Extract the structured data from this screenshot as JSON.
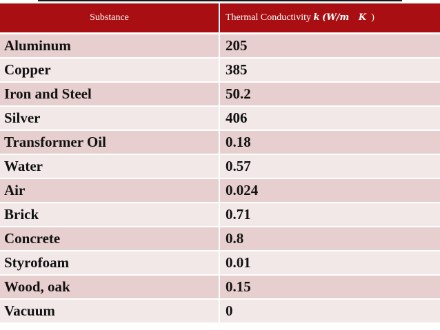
{
  "table": {
    "headers": {
      "substance": "Substance",
      "conductivity_prefix": "Thermal Conductivity ",
      "conductivity_k": "k",
      "conductivity_units": "(W/m   K",
      "conductivity_close": ")"
    },
    "rows": [
      {
        "substance": "Aluminum",
        "value": "205"
      },
      {
        "substance": "Copper",
        "value": "385"
      },
      {
        "substance": "Iron and Steel",
        "value": "50.2"
      },
      {
        "substance": "Silver",
        "value": "406"
      },
      {
        "substance": "Transformer Oil",
        "value": "0.18"
      },
      {
        "substance": "Water",
        "value": "0.57"
      },
      {
        "substance": "Air",
        "value": "0.024"
      },
      {
        "substance": "Brick",
        "value": "0.71"
      },
      {
        "substance": "Concrete",
        "value": "0.8"
      },
      {
        "substance": "Styrofoam",
        "value": "0.01"
      },
      {
        "substance": "Wood, oak",
        "value": "0.15"
      },
      {
        "substance": "Vacuum",
        "value": "0"
      }
    ]
  },
  "colors": {
    "header_bg": "#a90f12",
    "row_dark": "#e7cfcf",
    "row_light": "#f3e8e8"
  }
}
